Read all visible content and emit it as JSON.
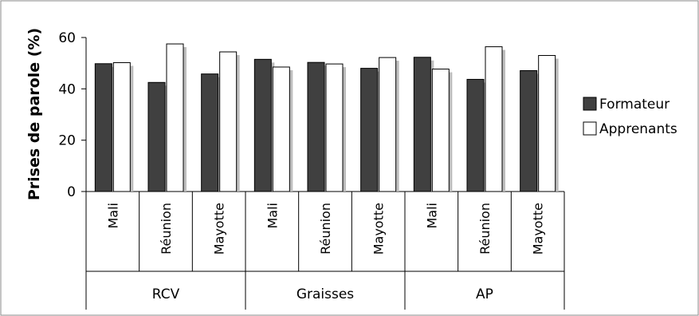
{
  "chart_data": {
    "type": "bar",
    "title": "",
    "xlabel": "",
    "ylabel": "Prises de parole (%)",
    "ylim": [
      0,
      60
    ],
    "yticks": [
      0,
      20,
      40,
      60
    ],
    "groups": [
      "RCV",
      "Graisses",
      "AP"
    ],
    "categories": [
      "Mali",
      "Réunion",
      "Mayotte",
      "Mali",
      "Réunion",
      "Mayotte",
      "Mali",
      "Réunion",
      "Mayotte"
    ],
    "series": [
      {
        "name": "Formateur",
        "color": "#404040",
        "values": [
          49.8,
          42.5,
          45.8,
          51.5,
          50.3,
          48,
          52.3,
          43.7,
          47.1
        ]
      },
      {
        "name": "Apprenants",
        "color": "#ffffff",
        "values": [
          50.2,
          57.5,
          54.4,
          48.5,
          49.7,
          52.2,
          47.7,
          56.4,
          53
        ]
      }
    ],
    "grid": false,
    "legend": "right"
  }
}
